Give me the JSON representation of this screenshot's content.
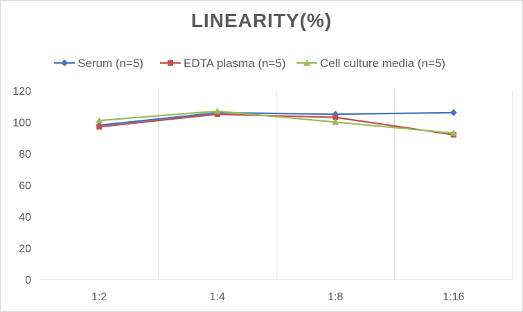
{
  "chart_data": {
    "type": "line",
    "title": "LINEARITY(%)",
    "categories": [
      "1:2",
      "1:4",
      "1:8",
      "1:16"
    ],
    "ylim": [
      0,
      120
    ],
    "yticks": [
      0,
      20,
      40,
      60,
      80,
      100,
      120
    ],
    "legend_position": "top",
    "grid": "vertical",
    "series": [
      {
        "name": "Serum (n=5)",
        "color": "#4472c4",
        "marker": "diamond",
        "values": [
          98,
          106,
          105,
          106
        ]
      },
      {
        "name": "EDTA plasma (n=5)",
        "color": "#c0504d",
        "marker": "square",
        "values": [
          97,
          105,
          103,
          92
        ]
      },
      {
        "name": "Cell culture media (n=5)",
        "color": "#9bbb59",
        "marker": "triangle",
        "values": [
          101,
          107,
          100,
          93
        ]
      }
    ]
  }
}
